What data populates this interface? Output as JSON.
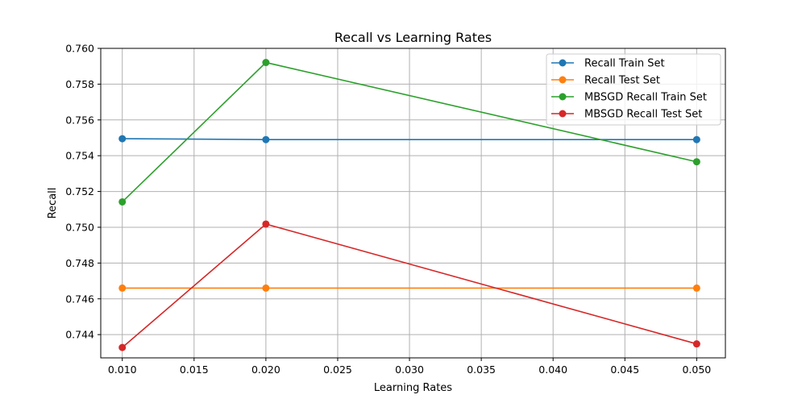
{
  "chart_data": {
    "type": "line",
    "title": "Recall vs Learning Rates",
    "xlabel": "Learning Rates",
    "ylabel": "Recall",
    "x": [
      0.01,
      0.02,
      0.05
    ],
    "xlim": [
      0.0085,
      0.052
    ],
    "ylim": [
      0.7427,
      0.76
    ],
    "xticks": [
      0.01,
      0.015,
      0.02,
      0.025,
      0.03,
      0.035,
      0.04,
      0.045,
      0.05
    ],
    "xtick_labels": [
      "0.010",
      "0.015",
      "0.020",
      "0.025",
      "0.030",
      "0.035",
      "0.040",
      "0.045",
      "0.050"
    ],
    "yticks": [
      0.744,
      0.746,
      0.748,
      0.75,
      0.752,
      0.754,
      0.756,
      0.758,
      0.76
    ],
    "ytick_labels": [
      "0.744",
      "0.746",
      "0.748",
      "0.750",
      "0.752",
      "0.754",
      "0.756",
      "0.758",
      "0.760"
    ],
    "grid": true,
    "legend_position": "top-right",
    "series": [
      {
        "name": "Recall Train Set",
        "color": "#1f77b4",
        "values": [
          0.75495,
          0.7549,
          0.7549
        ]
      },
      {
        "name": "Recall Test Set",
        "color": "#ff7f0e",
        "values": [
          0.7466,
          0.7466,
          0.7466
        ]
      },
      {
        "name": "MBSGD Recall Train Set",
        "color": "#2ca02c",
        "values": [
          0.75142,
          0.75921,
          0.75366
        ]
      },
      {
        "name": "MBSGD Recall Test Set",
        "color": "#d62728",
        "values": [
          0.74328,
          0.75018,
          0.74348
        ]
      }
    ]
  }
}
